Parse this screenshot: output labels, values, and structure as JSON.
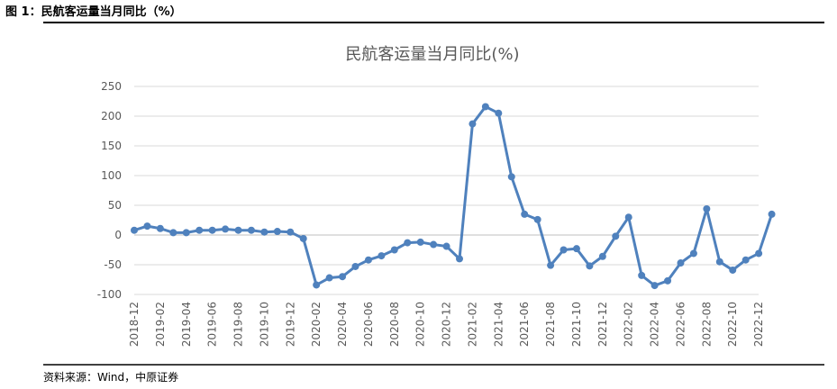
{
  "header": "图 1：民航客运量当月同比（%）",
  "source": "资料来源：Wind，中原证券",
  "chart_data": {
    "type": "line",
    "title": "民航客运量当月同比(%)",
    "categories": [
      "2018-12",
      null,
      "2019-02",
      null,
      "2019-04",
      null,
      "2019-06",
      null,
      "2019-08",
      null,
      "2019-10",
      null,
      "2019-12",
      null,
      "2020-02",
      null,
      "2020-04",
      null,
      "2020-06",
      null,
      "2020-08",
      null,
      "2020-10",
      null,
      "2020-12",
      null,
      "2021-02",
      null,
      "2021-04",
      null,
      "2021-06",
      null,
      "2021-08",
      null,
      "2021-10",
      null,
      "2021-12",
      null,
      "2022-02",
      null,
      "2022-04",
      null,
      "2022-06",
      null,
      "2022-08",
      null,
      "2022-10",
      null,
      "2022-12",
      null
    ],
    "values": [
      8,
      15,
      11,
      4,
      4,
      8,
      8,
      10,
      8,
      8,
      5,
      6,
      5,
      -6,
      -84,
      -72,
      -70,
      -53,
      -42,
      -35,
      -25,
      -13,
      -12,
      -16,
      -19,
      -40,
      187,
      216,
      205,
      98,
      35,
      26,
      -51,
      -25,
      -23,
      -52,
      -36,
      -2,
      30,
      -68,
      -85,
      -77,
      -47,
      -31,
      44,
      -45,
      -59,
      -42,
      -31,
      35
    ],
    "color": "#4f81bd",
    "ylim": [
      -100,
      250
    ],
    "yticks": [
      -100,
      -50,
      0,
      50,
      100,
      150,
      200,
      250
    ],
    "grid": true
  }
}
